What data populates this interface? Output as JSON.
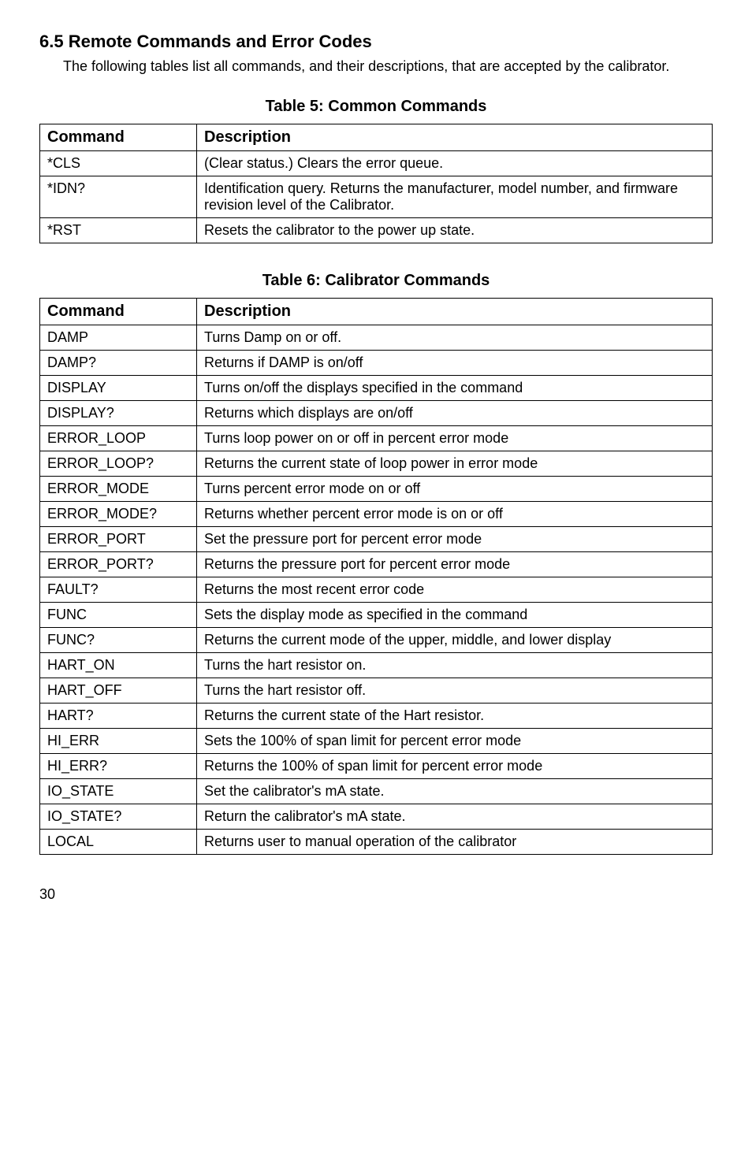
{
  "section": {
    "title": "6.5 Remote Commands and Error Codes",
    "intro": "The following tables list all commands, and their descriptions, that are accepted by the calibrator."
  },
  "table5": {
    "title": "Table 5: Common Commands",
    "headers": {
      "command": "Command",
      "description": "Description"
    },
    "rows": [
      {
        "command": "*CLS",
        "description": "(Clear status.) Clears the error queue."
      },
      {
        "command": "*IDN?",
        "description": "Identification query. Returns the manufacturer, model number, and firmware revision level of the Calibrator."
      },
      {
        "command": "*RST",
        "description": "Resets the calibrator to the power up state."
      }
    ]
  },
  "table6": {
    "title": "Table 6: Calibrator Commands",
    "headers": {
      "command": "Command",
      "description": "Description"
    },
    "rows": [
      {
        "command": "DAMP",
        "description": "Turns Damp on or off."
      },
      {
        "command": "DAMP?",
        "description": "Returns if DAMP is on/off"
      },
      {
        "command": "DISPLAY",
        "description": "Turns on/off the displays specified in the command"
      },
      {
        "command": "DISPLAY?",
        "description": "Returns which displays are on/off"
      },
      {
        "command": "ERROR_LOOP",
        "description": "Turns loop power on or off in percent error mode"
      },
      {
        "command": "ERROR_LOOP?",
        "description": "Returns the current state of loop power in error mode"
      },
      {
        "command": "ERROR_MODE",
        "description": "Turns percent error mode on or off"
      },
      {
        "command": "ERROR_MODE?",
        "description": "Returns whether percent error mode is on or off"
      },
      {
        "command": "ERROR_PORT",
        "description": "Set the pressure port for percent error mode"
      },
      {
        "command": "ERROR_PORT?",
        "description": "Returns the pressure port for percent error mode"
      },
      {
        "command": "FAULT?",
        "description": "Returns the most recent error code"
      },
      {
        "command": "FUNC",
        "description": "Sets the display mode as specified in the command"
      },
      {
        "command": "FUNC?",
        "description": "Returns the current mode of the upper, middle, and lower display"
      },
      {
        "command": "HART_ON",
        "description": "Turns the hart resistor on."
      },
      {
        "command": "HART_OFF",
        "description": "Turns the hart resistor off."
      },
      {
        "command": "HART?",
        "description": "Returns the current state of the Hart resistor."
      },
      {
        "command": "HI_ERR",
        "description": "Sets the 100% of span limit for percent error mode"
      },
      {
        "command": "HI_ERR?",
        "description": "Returns the 100% of span limit for percent error mode"
      },
      {
        "command": "IO_STATE",
        "description": "Set the calibrator's mA state."
      },
      {
        "command": "IO_STATE?",
        "description": "Return the calibrator's mA state."
      },
      {
        "command": "LOCAL",
        "description": "Returns user to manual operation of the calibrator"
      }
    ]
  },
  "pageNumber": "30"
}
